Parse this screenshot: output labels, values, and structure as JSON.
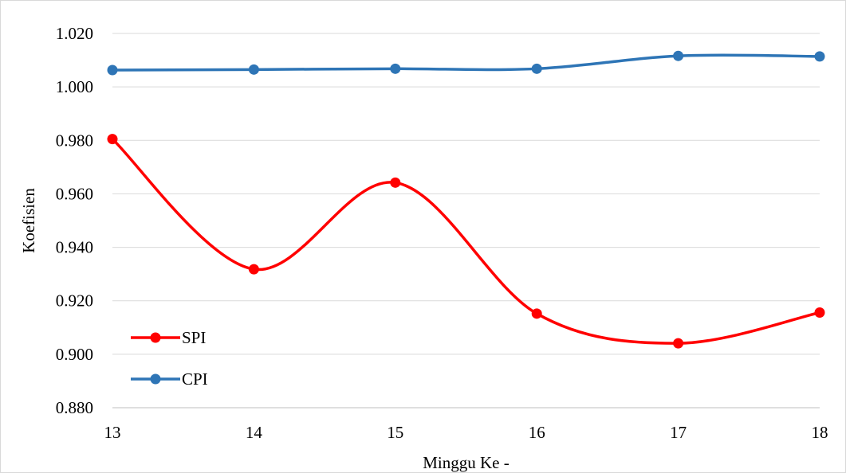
{
  "chart_data": {
    "type": "line",
    "title": "",
    "xlabel": "Minggu Ke -",
    "ylabel": "Koefisien",
    "x": [
      13,
      14,
      15,
      16,
      17,
      18
    ],
    "x_tick_labels": [
      "13",
      "14",
      "15",
      "16",
      "17",
      "18"
    ],
    "ylim": [
      0.88,
      1.02
    ],
    "y_ticks": [
      0.88,
      0.9,
      0.92,
      0.94,
      0.96,
      0.98,
      1.0,
      1.02
    ],
    "y_tick_labels": [
      "0.880",
      "0.900",
      "0.920",
      "0.940",
      "0.960",
      "0.980",
      "1.000",
      "1.020"
    ],
    "grid": "horizontal",
    "smooth": true,
    "legend_position": "bottom-left",
    "series": [
      {
        "name": "SPI",
        "color": "#ff0000",
        "values": [
          0.9805,
          0.9318,
          0.9642,
          0.9152,
          0.9041,
          0.9156
        ]
      },
      {
        "name": "CPI",
        "color": "#2e75b6",
        "values": [
          1.0063,
          1.0065,
          1.0068,
          1.0068,
          1.0116,
          1.0114
        ]
      }
    ]
  }
}
